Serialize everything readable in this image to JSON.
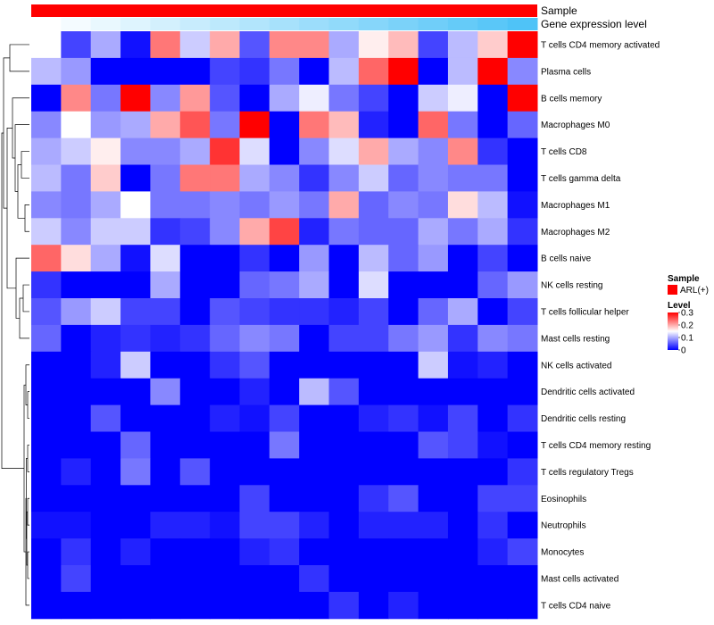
{
  "chart_data": {
    "type": "heatmap",
    "title": "",
    "annotation_tracks": [
      {
        "name": "Sample",
        "color": "#ff0000"
      },
      {
        "name": "Gene expression level",
        "color_low": "#ffffff",
        "color_high": "#4fc3f7"
      }
    ],
    "rows": [
      "T cells CD4 memory activated",
      "Plasma cells",
      "B cells memory",
      "Macrophages M0",
      "T cells CD8",
      "T cells gamma delta",
      "Macrophages M1",
      "Macrophages M2",
      "B cells naive",
      "NK cells resting",
      "T cells follicular helper",
      "Mast cells resting",
      "NK cells activated",
      "Dendritic cells activated",
      "Dendritic cells resting",
      "T cells CD4 memory resting",
      "T cells regulatory  Tregs",
      "Eosinophils",
      "Neutrophils",
      "Monocytes",
      "Mast cells activated",
      "T cells CD4 naive"
    ],
    "n_columns": 17,
    "values": [
      [
        0.15,
        0.04,
        0.1,
        0.01,
        0.23,
        0.12,
        0.2,
        0.05,
        0.22,
        0.22,
        0.1,
        0.16,
        0.19,
        0.04,
        0.11,
        0.18,
        0.3
      ],
      [
        0.11,
        0.09,
        0.0,
        0.0,
        0.0,
        0.0,
        0.04,
        0.03,
        0.07,
        0.0,
        0.11,
        0.24,
        0.3,
        0.0,
        0.11,
        0.3,
        0.08
      ],
      [
        0.0,
        0.22,
        0.07,
        0.3,
        0.08,
        0.21,
        0.05,
        0.0,
        0.1,
        0.14,
        0.07,
        0.04,
        0.0,
        0.12,
        0.14,
        0.0,
        0.3
      ],
      [
        0.08,
        0.15,
        0.09,
        0.1,
        0.2,
        0.25,
        0.07,
        0.3,
        0.0,
        0.23,
        0.19,
        0.02,
        0.0,
        0.24,
        0.07,
        0.0,
        0.06
      ],
      [
        0.1,
        0.12,
        0.16,
        0.08,
        0.08,
        0.1,
        0.27,
        0.13,
        0.0,
        0.08,
        0.13,
        0.2,
        0.1,
        0.08,
        0.22,
        0.03,
        0.0
      ],
      [
        0.11,
        0.07,
        0.18,
        0.0,
        0.07,
        0.23,
        0.23,
        0.1,
        0.08,
        0.03,
        0.08,
        0.12,
        0.06,
        0.08,
        0.07,
        0.07,
        0.0
      ],
      [
        0.08,
        0.07,
        0.1,
        0.15,
        0.07,
        0.07,
        0.08,
        0.07,
        0.09,
        0.07,
        0.2,
        0.06,
        0.08,
        0.07,
        0.17,
        0.11,
        0.01
      ],
      [
        0.12,
        0.08,
        0.12,
        0.12,
        0.03,
        0.04,
        0.08,
        0.2,
        0.26,
        0.02,
        0.07,
        0.06,
        0.06,
        0.1,
        0.07,
        0.1,
        0.03
      ],
      [
        0.24,
        0.17,
        0.1,
        0.01,
        0.13,
        0.0,
        0.0,
        0.03,
        0.0,
        0.09,
        0.0,
        0.11,
        0.06,
        0.09,
        0.0,
        0.04,
        0.0
      ],
      [
        0.03,
        0.0,
        0.0,
        0.0,
        0.1,
        0.0,
        0.0,
        0.06,
        0.07,
        0.1,
        0.0,
        0.13,
        0.0,
        0.0,
        0.0,
        0.06,
        0.09
      ],
      [
        0.05,
        0.09,
        0.12,
        0.04,
        0.04,
        0.0,
        0.05,
        0.04,
        0.03,
        0.03,
        0.02,
        0.04,
        0.0,
        0.06,
        0.1,
        0.0,
        0.04
      ],
      [
        0.06,
        0.0,
        0.02,
        0.03,
        0.02,
        0.03,
        0.06,
        0.08,
        0.07,
        0.0,
        0.04,
        0.04,
        0.07,
        0.09,
        0.03,
        0.08,
        0.07
      ],
      [
        0.0,
        0.0,
        0.02,
        0.12,
        0.0,
        0.0,
        0.03,
        0.05,
        0.0,
        0.0,
        0.0,
        0.0,
        0.0,
        0.12,
        0.01,
        0.02,
        0.0
      ],
      [
        0.0,
        0.0,
        0.0,
        0.0,
        0.08,
        0.0,
        0.0,
        0.02,
        0.0,
        0.11,
        0.05,
        0.0,
        0.0,
        0.0,
        0.0,
        0.0,
        0.0
      ],
      [
        0.0,
        0.0,
        0.05,
        0.0,
        0.0,
        0.0,
        0.02,
        0.01,
        0.04,
        0.0,
        0.0,
        0.02,
        0.03,
        0.01,
        0.04,
        0.0,
        0.03
      ],
      [
        0.0,
        0.0,
        0.0,
        0.06,
        0.0,
        0.0,
        0.0,
        0.0,
        0.07,
        0.0,
        0.0,
        0.0,
        0.0,
        0.05,
        0.04,
        0.01,
        0.0
      ],
      [
        0.0,
        0.02,
        0.0,
        0.07,
        0.0,
        0.05,
        0.0,
        0.0,
        0.0,
        0.0,
        0.0,
        0.0,
        0.0,
        0.0,
        0.0,
        0.0,
        0.03
      ],
      [
        0.0,
        0.0,
        0.0,
        0.0,
        0.0,
        0.0,
        0.0,
        0.04,
        0.0,
        0.0,
        0.0,
        0.03,
        0.05,
        0.0,
        0.0,
        0.04,
        0.04
      ],
      [
        0.01,
        0.01,
        0.0,
        0.0,
        0.02,
        0.02,
        0.01,
        0.04,
        0.04,
        0.02,
        0.0,
        0.02,
        0.02,
        0.02,
        0.0,
        0.03,
        0.0
      ],
      [
        0.0,
        0.03,
        0.0,
        0.02,
        0.0,
        0.0,
        0.0,
        0.02,
        0.03,
        0.0,
        0.0,
        0.0,
        0.0,
        0.0,
        0.0,
        0.02,
        0.04
      ],
      [
        0.0,
        0.04,
        0.0,
        0.0,
        0.0,
        0.0,
        0.0,
        0.0,
        0.0,
        0.03,
        0.0,
        0.0,
        0.0,
        0.0,
        0.0,
        0.0,
        0.0
      ],
      [
        0.0,
        0.0,
        0.0,
        0.0,
        0.0,
        0.0,
        0.0,
        0.0,
        0.0,
        0.0,
        0.03,
        0.0,
        0.02,
        0.0,
        0.0,
        0.0,
        0.0
      ]
    ],
    "color_scale": {
      "min": 0,
      "max": 0.3,
      "low": "#0000ff",
      "mid": "#ffffff",
      "high": "#ff0000",
      "midpoint": 0.15
    },
    "legend": {
      "position": "right",
      "sample_title": "Sample",
      "sample_entry": "ARL(+)",
      "sample_color": "#ff0000",
      "level_title": "Level",
      "level_ticks": [
        "0.3",
        "0.2",
        "0.1",
        "0"
      ],
      "level_tick_values": [
        0.3,
        0.2,
        0.1,
        0
      ]
    },
    "row_dendrogram": "left"
  }
}
